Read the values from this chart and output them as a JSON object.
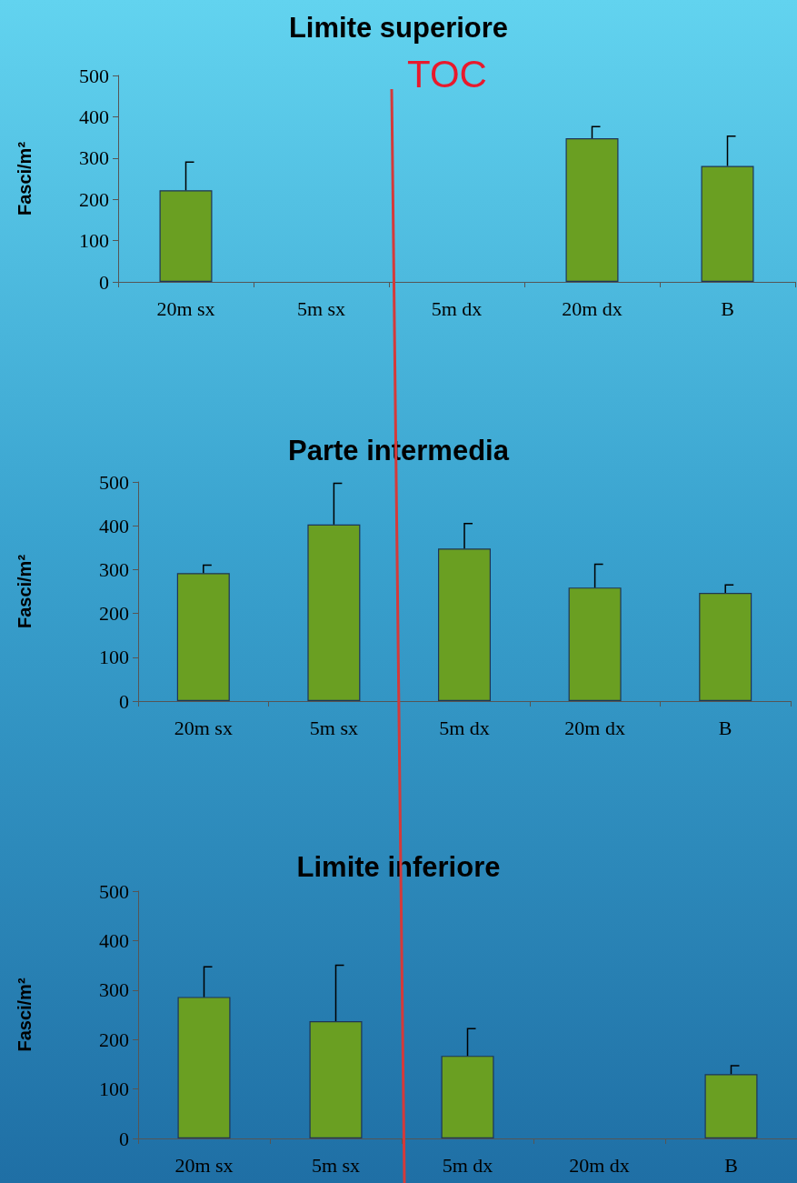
{
  "chart_data": [
    {
      "type": "bar",
      "title": "Limite superiore",
      "ylabel": "Fasci/m²",
      "categories": [
        "20m sx",
        "5m sx",
        "5m dx",
        "20m dx",
        "B"
      ],
      "values": [
        222,
        null,
        null,
        348,
        281
      ],
      "errors": [
        [
          222,
          290
        ],
        null,
        null,
        [
          348,
          376
        ],
        [
          281,
          353
        ]
      ],
      "color": "#6a9f22",
      "ylim": [
        0,
        500
      ],
      "yticks": [
        0,
        100,
        200,
        300,
        400,
        500
      ],
      "annotations": [
        "TOC"
      ]
    },
    {
      "type": "bar",
      "title": "Parte intermedia",
      "ylabel": "Fasci/m²",
      "categories": [
        "20m sx",
        "5m sx",
        "5m dx",
        "20m dx",
        "B"
      ],
      "values": [
        292,
        403,
        348,
        259,
        247
      ],
      "errors": [
        [
          292,
          310
        ],
        [
          403,
          497
        ],
        [
          348,
          405
        ],
        [
          259,
          312
        ],
        [
          247,
          265
        ]
      ],
      "color": "#6a9f22",
      "ylim": [
        0,
        500
      ],
      "yticks": [
        0,
        100,
        200,
        300,
        400,
        500
      ]
    },
    {
      "type": "bar",
      "title": "Limite inferiore",
      "ylabel": "Fasci/m²",
      "categories": [
        "20m sx",
        "5m sx",
        "5m dx",
        "20m dx",
        "B"
      ],
      "values": [
        286,
        237,
        167,
        null,
        130
      ],
      "errors": [
        [
          286,
          347
        ],
        [
          237,
          350
        ],
        [
          167,
          222
        ],
        null,
        [
          130,
          147
        ]
      ],
      "color": "#6a9f22",
      "ylim": [
        0,
        500
      ],
      "yticks": [
        0,
        100,
        200,
        300,
        400,
        500
      ]
    }
  ]
}
